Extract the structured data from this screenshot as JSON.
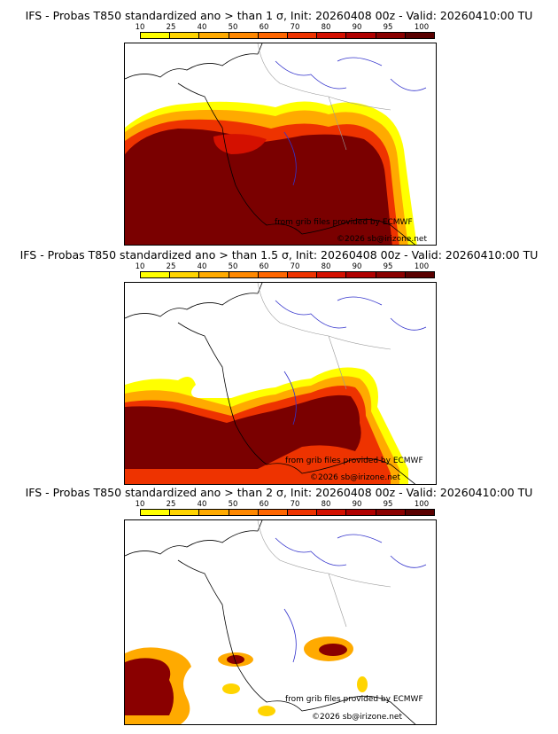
{
  "legend": {
    "ticks": [
      "10",
      "25",
      "40",
      "50",
      "60",
      "70",
      "80",
      "90",
      "95",
      "100"
    ],
    "colors": [
      "#ffff00",
      "#ffd400",
      "#ffaa00",
      "#ff8800",
      "#ff6600",
      "#ee3300",
      "#d41000",
      "#b00000",
      "#8a0000",
      "#5a0000"
    ]
  },
  "panels": [
    {
      "title": "IFS - Probas T850  standardized ano > than 1 σ, Init: 20260408 00z - Valid: 20260410:00 TU",
      "credit_source": "from grib files provided by ECMWF",
      "credit_copyright": "©2026 sb@irizone.net"
    },
    {
      "title": "IFS - Probas T850  standardized ano > than 1.5 σ, Init: 20260408 00z - Valid: 20260410:00 TU",
      "credit_source": "from grib files provided by ECMWF",
      "credit_copyright": "©2026 sb@irizone.net"
    },
    {
      "title": "IFS - Probas T850  standardized ano > than 2 σ, Init: 20260408 00z - Valid: 20260410:00 TU",
      "credit_source": "from grib files provided by ECMWF",
      "credit_copyright": "©2026 sb@irizone.net"
    }
  ]
}
